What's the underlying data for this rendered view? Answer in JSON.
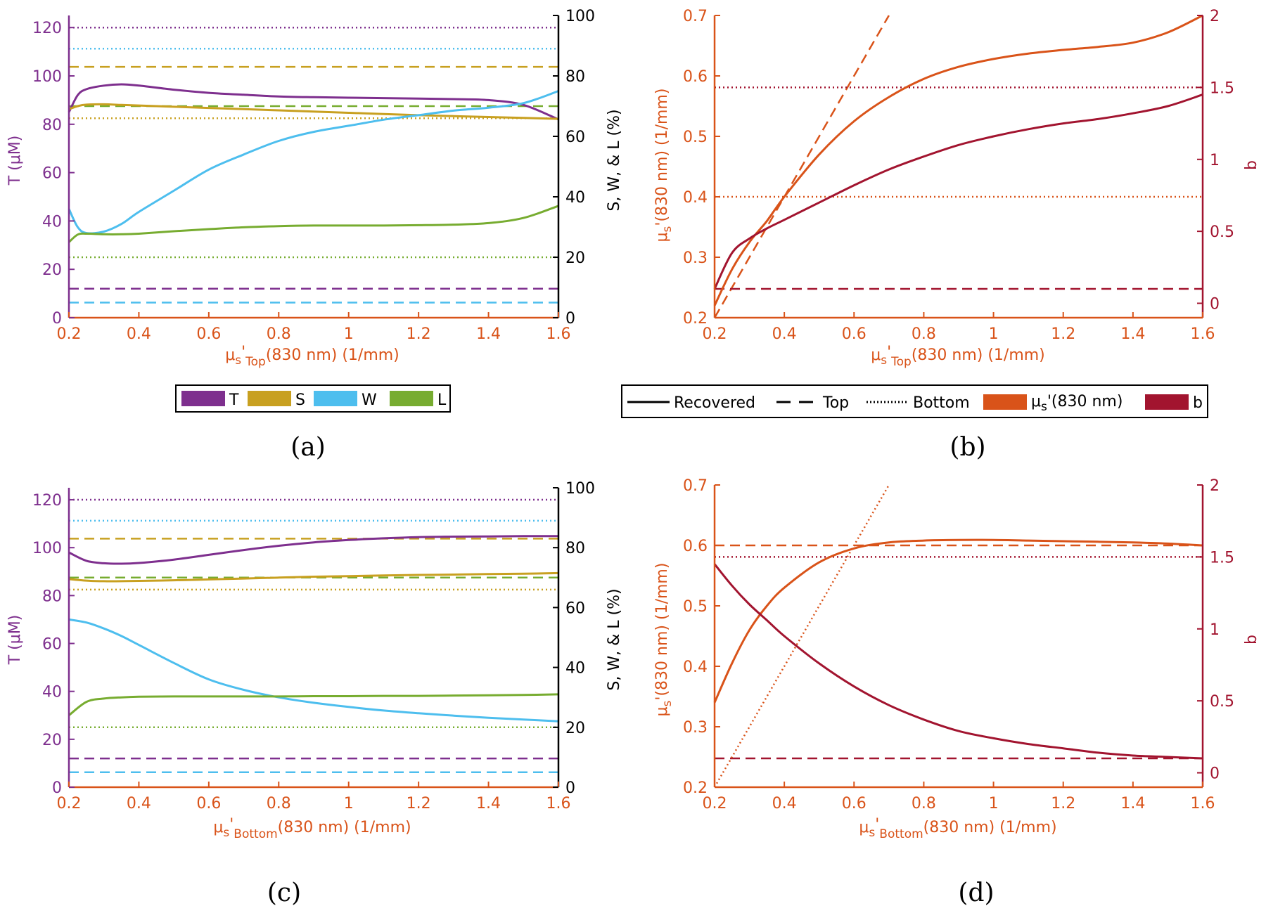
{
  "colors": {
    "T": "#7E2F8E",
    "S": "#C8A020",
    "W": "#4DBEEE",
    "L": "#77AC30",
    "mus": "#D95319",
    "b": "#A2142F",
    "axis": "#000000"
  },
  "panels": {
    "a": {
      "caption": "(a)",
      "xlabel_pre": "μ",
      "xlabel_sub1": "s",
      "xlabel_mid": "'",
      "xlabel_sub2": "Top",
      "xlabel_post": "(830 nm) (1/mm)"
    },
    "b": {
      "caption": "(b)",
      "xlabel_pre": "μ",
      "xlabel_sub1": "s",
      "xlabel_mid": "'",
      "xlabel_sub2": "Top",
      "xlabel_post": "(830 nm) (1/mm)"
    },
    "c": {
      "caption": "(c)",
      "xlabel_pre": "μ",
      "xlabel_sub1": "s",
      "xlabel_mid": "'",
      "xlabel_sub2": "Bottom",
      "xlabel_post": "(830 nm) (1/mm)"
    },
    "d": {
      "caption": "(d)",
      "xlabel_pre": "μ",
      "xlabel_sub1": "s",
      "xlabel_mid": "'",
      "xlabel_sub2": "Bottom",
      "xlabel_post": "(830 nm) (1/mm)"
    }
  },
  "labels": {
    "ylabel_T": "T (μM)",
    "ylabel_SWL": "S, W, & L (%)",
    "ylabel_mus_pre": "μ",
    "ylabel_mus_sub": "s",
    "ylabel_mus_post": "'(830 nm) (1/mm)",
    "ylabel_b": "b"
  },
  "legend_a": {
    "items": [
      "T",
      "S",
      "W",
      "L"
    ]
  },
  "legend_b": {
    "recovered": "Recovered",
    "top": "Top",
    "bottom": "Bottom",
    "mus_pre": "μ",
    "mus_sub": "s",
    "mus_post": "'(830 nm)",
    "b": "b"
  },
  "chart_data": [
    {
      "id": "a",
      "type": "line",
      "x_label": "μs'Top(830 nm) (1/mm)",
      "xlim": [
        0.2,
        1.6
      ],
      "xticks": [
        "0.2",
        "0.4",
        "0.6",
        "0.8",
        "1",
        "1.2",
        "1.4",
        "1.6"
      ],
      "xtick_values": [
        0.2,
        0.4,
        0.6,
        0.8,
        1.0,
        1.2,
        1.4,
        1.6
      ],
      "left_axis": {
        "label": "T (μM)",
        "ylim": [
          0,
          125
        ],
        "ticks": [
          "0",
          "20",
          "40",
          "60",
          "80",
          "100",
          "120"
        ],
        "tick_values": [
          0,
          20,
          40,
          60,
          80,
          100,
          120
        ]
      },
      "right_axis": {
        "label": "S, W, & L (%)",
        "ylim": [
          0,
          100
        ],
        "ticks": [
          "0",
          "20",
          "40",
          "60",
          "80",
          "100"
        ],
        "tick_values": [
          0,
          20,
          40,
          60,
          80,
          100
        ]
      },
      "x": [
        0.2,
        0.225,
        0.25,
        0.3,
        0.35,
        0.4,
        0.5,
        0.6,
        0.7,
        0.8,
        0.9,
        1.0,
        1.1,
        1.2,
        1.3,
        1.4,
        1.5,
        1.6
      ],
      "series": [
        {
          "name": "T",
          "axis": "left",
          "style": "recovered",
          "values": [
            85,
            92,
            94.5,
            96,
            96.5,
            96,
            94.3,
            93,
            92.2,
            91.5,
            91.2,
            91,
            90.8,
            90.6,
            90.4,
            90,
            88,
            82
          ]
        },
        {
          "name": "S",
          "axis": "right",
          "style": "recovered",
          "values": [
            69,
            70,
            70.5,
            70.6,
            70.4,
            70.2,
            69.8,
            69.4,
            69.0,
            68.6,
            68.2,
            67.8,
            67.4,
            67.0,
            66.7,
            66.4,
            66.1,
            65.8
          ]
        },
        {
          "name": "W",
          "axis": "right",
          "style": "recovered",
          "values": [
            36,
            30,
            28,
            28.5,
            31,
            35,
            42,
            49,
            54,
            58.5,
            61.5,
            63.5,
            65.5,
            67,
            68.5,
            69.5,
            71,
            75
          ]
        },
        {
          "name": "L",
          "axis": "right",
          "style": "recovered",
          "values": [
            25,
            27.5,
            27.8,
            27.6,
            27.6,
            27.8,
            28.6,
            29.3,
            29.9,
            30.3,
            30.5,
            30.5,
            30.5,
            30.6,
            30.8,
            31.3,
            33,
            37
          ]
        },
        {
          "name": "T",
          "axis": "left",
          "style": "top",
          "constant": 12
        },
        {
          "name": "S",
          "axis": "right",
          "style": "top",
          "constant": 83
        },
        {
          "name": "W",
          "axis": "right",
          "style": "top",
          "constant": 5
        },
        {
          "name": "L",
          "axis": "right",
          "style": "top",
          "constant": 70
        },
        {
          "name": "T",
          "axis": "left",
          "style": "bottom",
          "constant": 120
        },
        {
          "name": "S",
          "axis": "right",
          "style": "bottom",
          "constant": 66
        },
        {
          "name": "W",
          "axis": "right",
          "style": "bottom",
          "constant": 89
        },
        {
          "name": "L",
          "axis": "right",
          "style": "bottom",
          "constant": 20
        }
      ]
    },
    {
      "id": "b",
      "type": "line",
      "x_label": "μs'Top(830 nm) (1/mm)",
      "xlim": [
        0.2,
        1.6
      ],
      "xticks": [
        "0.2",
        "0.4",
        "0.6",
        "0.8",
        "1",
        "1.2",
        "1.4",
        "1.6"
      ],
      "xtick_values": [
        0.2,
        0.4,
        0.6,
        0.8,
        1.0,
        1.2,
        1.4,
        1.6
      ],
      "left_axis": {
        "label": "μs'(830 nm) (1/mm)",
        "ylim": [
          0.2,
          0.7
        ],
        "ticks": [
          "0.2",
          "0.3",
          "0.4",
          "0.5",
          "0.6",
          "0.7"
        ],
        "tick_values": [
          0.2,
          0.3,
          0.4,
          0.5,
          0.6,
          0.7
        ]
      },
      "right_axis": {
        "label": "b",
        "ylim": [
          -0.1,
          2.0
        ],
        "ticks": [
          "0",
          "0.5",
          "1",
          "1.5",
          "2"
        ],
        "tick_values": [
          0,
          0.5,
          1,
          1.5,
          2
        ]
      },
      "x": [
        0.2,
        0.25,
        0.3,
        0.35,
        0.4,
        0.5,
        0.6,
        0.7,
        0.8,
        0.9,
        1.0,
        1.1,
        1.2,
        1.3,
        1.4,
        1.5,
        1.6
      ],
      "series": [
        {
          "name": "μs'(830 nm)",
          "axis": "left",
          "style": "recovered",
          "values": [
            0.22,
            0.28,
            0.325,
            0.36,
            0.4,
            0.47,
            0.525,
            0.565,
            0.595,
            0.615,
            0.628,
            0.637,
            0.643,
            0.648,
            0.655,
            0.672,
            0.7
          ]
        },
        {
          "name": "b",
          "axis": "right",
          "style": "recovered",
          "values": [
            0.1,
            0.35,
            0.45,
            0.52,
            0.58,
            0.7,
            0.82,
            0.93,
            1.02,
            1.1,
            1.16,
            1.21,
            1.25,
            1.28,
            1.32,
            1.37,
            1.45
          ]
        },
        {
          "name": "μs'(830 nm)",
          "axis": "left",
          "style": "top",
          "line": [
            [
              0.2,
              0.2
            ],
            [
              0.7,
              0.7
            ]
          ]
        },
        {
          "name": "b",
          "axis": "right",
          "style": "top",
          "constant": 0.1
        },
        {
          "name": "μs'(830 nm)",
          "axis": "left",
          "style": "bottom",
          "constant": 0.4
        },
        {
          "name": "b",
          "axis": "right",
          "style": "bottom",
          "constant": 1.5
        }
      ]
    },
    {
      "id": "c",
      "type": "line",
      "x_label": "μs'Bottom(830 nm) (1/mm)",
      "xlim": [
        0.2,
        1.6
      ],
      "xticks": [
        "0.2",
        "0.4",
        "0.6",
        "0.8",
        "1",
        "1.2",
        "1.4",
        "1.6"
      ],
      "xtick_values": [
        0.2,
        0.4,
        0.6,
        0.8,
        1.0,
        1.2,
        1.4,
        1.6
      ],
      "left_axis": {
        "label": "T (μM)",
        "ylim": [
          0,
          125
        ],
        "ticks": [
          "0",
          "20",
          "40",
          "60",
          "80",
          "100",
          "120"
        ],
        "tick_values": [
          0,
          20,
          40,
          60,
          80,
          100,
          120
        ]
      },
      "right_axis": {
        "label": "S, W, & L (%)",
        "ylim": [
          0,
          100
        ],
        "ticks": [
          "0",
          "20",
          "40",
          "60",
          "80",
          "100"
        ],
        "tick_values": [
          0,
          20,
          40,
          60,
          80,
          100
        ]
      },
      "x": [
        0.2,
        0.25,
        0.3,
        0.35,
        0.4,
        0.5,
        0.6,
        0.7,
        0.8,
        0.9,
        1.0,
        1.1,
        1.2,
        1.3,
        1.4,
        1.5,
        1.6
      ],
      "series": [
        {
          "name": "T",
          "axis": "left",
          "style": "recovered",
          "values": [
            98,
            94.5,
            93.5,
            93.3,
            93.6,
            95,
            97,
            99,
            100.8,
            102.2,
            103.2,
            103.9,
            104.4,
            104.6,
            104.7,
            104.8,
            104.8
          ]
        },
        {
          "name": "S",
          "axis": "right",
          "style": "recovered",
          "values": [
            69.5,
            69,
            68.8,
            68.8,
            68.9,
            69.1,
            69.4,
            69.7,
            70.0,
            70.3,
            70.5,
            70.7,
            70.9,
            71.0,
            71.2,
            71.3,
            71.5
          ]
        },
        {
          "name": "W",
          "axis": "right",
          "style": "recovered",
          "values": [
            56,
            55,
            53,
            50.5,
            47.5,
            41.5,
            36,
            32.5,
            30,
            28.2,
            26.8,
            25.6,
            24.7,
            23.9,
            23.2,
            22.6,
            22
          ]
        },
        {
          "name": "L",
          "axis": "right",
          "style": "recovered",
          "values": [
            24,
            28.5,
            29.6,
            30,
            30.2,
            30.3,
            30.3,
            30.3,
            30.3,
            30.4,
            30.4,
            30.5,
            30.5,
            30.6,
            30.7,
            30.8,
            31
          ]
        },
        {
          "name": "T",
          "axis": "left",
          "style": "top",
          "constant": 12
        },
        {
          "name": "S",
          "axis": "right",
          "style": "top",
          "constant": 83
        },
        {
          "name": "W",
          "axis": "right",
          "style": "top",
          "constant": 5
        },
        {
          "name": "L",
          "axis": "right",
          "style": "top",
          "constant": 70
        },
        {
          "name": "T",
          "axis": "left",
          "style": "bottom",
          "constant": 120
        },
        {
          "name": "S",
          "axis": "right",
          "style": "bottom",
          "constant": 66
        },
        {
          "name": "W",
          "axis": "right",
          "style": "bottom",
          "constant": 89
        },
        {
          "name": "L",
          "axis": "right",
          "style": "bottom",
          "constant": 20
        }
      ]
    },
    {
      "id": "d",
      "type": "line",
      "x_label": "μs'Bottom(830 nm) (1/mm)",
      "xlim": [
        0.2,
        1.6
      ],
      "xticks": [
        "0.2",
        "0.4",
        "0.6",
        "0.8",
        "1",
        "1.2",
        "1.4",
        "1.6"
      ],
      "xtick_values": [
        0.2,
        0.4,
        0.6,
        0.8,
        1.0,
        1.2,
        1.4,
        1.6
      ],
      "left_axis": {
        "label": "μs'(830 nm) (1/mm)",
        "ylim": [
          0.2,
          0.7
        ],
        "ticks": [
          "0.2",
          "0.3",
          "0.4",
          "0.5",
          "0.6",
          "0.7"
        ],
        "tick_values": [
          0.2,
          0.3,
          0.4,
          0.5,
          0.6,
          0.7
        ]
      },
      "right_axis": {
        "label": "b",
        "ylim": [
          -0.1,
          2.0
        ],
        "ticks": [
          "0",
          "0.5",
          "1",
          "1.5",
          "2"
        ],
        "tick_values": [
          0,
          0.5,
          1,
          1.5,
          2
        ]
      },
      "x": [
        0.2,
        0.25,
        0.3,
        0.35,
        0.4,
        0.5,
        0.6,
        0.7,
        0.8,
        0.9,
        1.0,
        1.1,
        1.2,
        1.3,
        1.4,
        1.5,
        1.6
      ],
      "series": [
        {
          "name": "μs'(830 nm)",
          "axis": "left",
          "style": "recovered",
          "values": [
            0.34,
            0.405,
            0.46,
            0.5,
            0.53,
            0.572,
            0.595,
            0.605,
            0.608,
            0.609,
            0.609,
            0.608,
            0.607,
            0.606,
            0.605,
            0.603,
            0.6
          ]
        },
        {
          "name": "b",
          "axis": "right",
          "style": "recovered",
          "values": [
            1.45,
            1.3,
            1.17,
            1.06,
            0.95,
            0.76,
            0.6,
            0.47,
            0.37,
            0.29,
            0.24,
            0.2,
            0.17,
            0.14,
            0.12,
            0.11,
            0.1
          ]
        },
        {
          "name": "μs'(830 nm)",
          "axis": "left",
          "style": "top",
          "constant": 0.6
        },
        {
          "name": "b",
          "axis": "right",
          "style": "top",
          "constant": 0.1
        },
        {
          "name": "μs'(830 nm)",
          "axis": "left",
          "style": "bottom",
          "line": [
            [
              0.2,
              0.2
            ],
            [
              0.7,
              0.7
            ]
          ]
        },
        {
          "name": "b",
          "axis": "right",
          "style": "bottom",
          "constant": 1.5
        }
      ]
    }
  ]
}
